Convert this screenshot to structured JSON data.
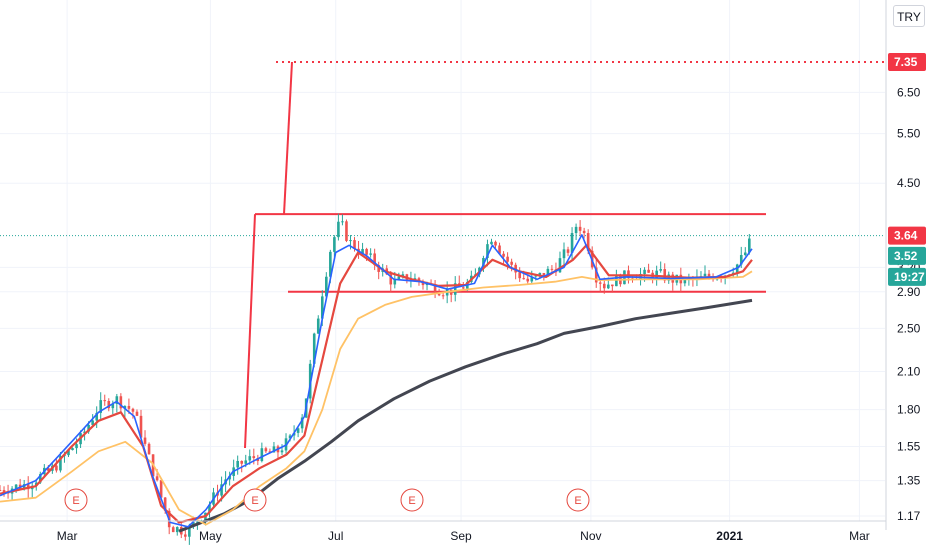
{
  "currency_button": "TRY",
  "price_tags": {
    "target": "7.35",
    "last": "3.64",
    "ma": "3.52",
    "countdown": "19:27"
  },
  "colors": {
    "up": "#26a69a",
    "down": "#ef5350",
    "ma_fast": "#2962ff",
    "ma_mid": "#e5483f",
    "ma_slow": "#ffc266",
    "ma_long": "#434651",
    "drawing": "#f23645",
    "target_tag": "#f23645",
    "ma_tag": "#26a69a",
    "grid": "#f0f3fa"
  },
  "chart_data": {
    "type": "candlestick",
    "y_scale": "log",
    "y_ticks": [
      "6.50",
      "5.50",
      "4.50",
      "3.20",
      "2.90",
      "2.50",
      "2.10",
      "1.80",
      "1.55",
      "1.35",
      "1.17"
    ],
    "x_ticks": [
      "Mar",
      "May",
      "Jul",
      "Sep",
      "Nov",
      "2021",
      "Mar"
    ],
    "earnings_markers": [
      "E",
      "E",
      "E",
      "E"
    ],
    "last_price": 3.64,
    "ma_value": 3.52,
    "target_price": 7.35,
    "channel": {
      "upper": 3.97,
      "lower": 2.9
    },
    "series": [
      {
        "key": "price",
        "points": [
          [
            0,
            1.3
          ],
          [
            6,
            1.33
          ],
          [
            12,
            1.42
          ],
          [
            18,
            1.6
          ],
          [
            22,
            1.82
          ],
          [
            26,
            1.88
          ],
          [
            30,
            1.78
          ],
          [
            34,
            1.42
          ],
          [
            38,
            1.12
          ],
          [
            42,
            1.1
          ],
          [
            46,
            1.2
          ],
          [
            50,
            1.35
          ],
          [
            54,
            1.45
          ],
          [
            58,
            1.5
          ],
          [
            62,
            1.52
          ],
          [
            65,
            1.6
          ],
          [
            68,
            1.8
          ],
          [
            70,
            2.35
          ],
          [
            72,
            2.9
          ],
          [
            74,
            3.5
          ],
          [
            76,
            3.85
          ],
          [
            78,
            3.55
          ],
          [
            80,
            3.45
          ],
          [
            83,
            3.3
          ],
          [
            86,
            3.12
          ],
          [
            88,
            3.0
          ],
          [
            91,
            3.08
          ],
          [
            94,
            3.02
          ],
          [
            97,
            2.95
          ],
          [
            100,
            2.9
          ],
          [
            103,
            2.95
          ],
          [
            106,
            3.05
          ],
          [
            108,
            3.4
          ],
          [
            110,
            3.65
          ],
          [
            112,
            3.4
          ],
          [
            115,
            3.15
          ],
          [
            118,
            3.02
          ],
          [
            121,
            3.1
          ],
          [
            124,
            3.2
          ],
          [
            127,
            3.45
          ],
          [
            129,
            3.85
          ],
          [
            131,
            3.6
          ],
          [
            133,
            3.1
          ],
          [
            135,
            2.98
          ],
          [
            138,
            3.05
          ],
          [
            141,
            3.12
          ],
          [
            144,
            3.1
          ],
          [
            147,
            3.12
          ],
          [
            150,
            3.05
          ],
          [
            153,
            3.02
          ],
          [
            156,
            3.05
          ],
          [
            159,
            3.1
          ],
          [
            162,
            3.12
          ],
          [
            165,
            3.25
          ],
          [
            167,
            3.45
          ],
          [
            168,
            3.64
          ]
        ]
      },
      {
        "key": "ma_fast",
        "points": [
          [
            0,
            1.27
          ],
          [
            8,
            1.35
          ],
          [
            16,
            1.58
          ],
          [
            22,
            1.78
          ],
          [
            26,
            1.86
          ],
          [
            30,
            1.75
          ],
          [
            34,
            1.38
          ],
          [
            38,
            1.14
          ],
          [
            42,
            1.12
          ],
          [
            46,
            1.2
          ],
          [
            52,
            1.4
          ],
          [
            58,
            1.48
          ],
          [
            64,
            1.56
          ],
          [
            68,
            1.75
          ],
          [
            72,
            2.6
          ],
          [
            75,
            3.4
          ],
          [
            78,
            3.5
          ],
          [
            82,
            3.35
          ],
          [
            88,
            3.05
          ],
          [
            94,
            3.02
          ],
          [
            100,
            2.93
          ],
          [
            106,
            3.0
          ],
          [
            110,
            3.5
          ],
          [
            114,
            3.2
          ],
          [
            120,
            3.05
          ],
          [
            126,
            3.2
          ],
          [
            130,
            3.65
          ],
          [
            134,
            3.05
          ],
          [
            140,
            3.08
          ],
          [
            150,
            3.06
          ],
          [
            160,
            3.08
          ],
          [
            165,
            3.2
          ],
          [
            168,
            3.45
          ]
        ]
      },
      {
        "key": "ma_mid",
        "points": [
          [
            0,
            1.28
          ],
          [
            8,
            1.32
          ],
          [
            16,
            1.55
          ],
          [
            22,
            1.72
          ],
          [
            27,
            1.78
          ],
          [
            32,
            1.55
          ],
          [
            36,
            1.22
          ],
          [
            40,
            1.14
          ],
          [
            46,
            1.17
          ],
          [
            52,
            1.32
          ],
          [
            58,
            1.42
          ],
          [
            64,
            1.5
          ],
          [
            68,
            1.62
          ],
          [
            72,
            2.2
          ],
          [
            76,
            3.0
          ],
          [
            80,
            3.4
          ],
          [
            86,
            3.15
          ],
          [
            92,
            3.05
          ],
          [
            98,
            2.97
          ],
          [
            104,
            2.98
          ],
          [
            110,
            3.3
          ],
          [
            116,
            3.15
          ],
          [
            122,
            3.08
          ],
          [
            128,
            3.3
          ],
          [
            131,
            3.5
          ],
          [
            136,
            3.1
          ],
          [
            144,
            3.1
          ],
          [
            154,
            3.07
          ],
          [
            162,
            3.08
          ],
          [
            166,
            3.15
          ],
          [
            168,
            3.3
          ]
        ]
      },
      {
        "key": "ma_slow",
        "points": [
          [
            0,
            1.24
          ],
          [
            8,
            1.26
          ],
          [
            16,
            1.4
          ],
          [
            22,
            1.52
          ],
          [
            28,
            1.58
          ],
          [
            34,
            1.45
          ],
          [
            40,
            1.2
          ],
          [
            46,
            1.13
          ],
          [
            52,
            1.2
          ],
          [
            58,
            1.32
          ],
          [
            64,
            1.42
          ],
          [
            68,
            1.52
          ],
          [
            72,
            1.8
          ],
          [
            76,
            2.3
          ],
          [
            80,
            2.6
          ],
          [
            86,
            2.75
          ],
          [
            92,
            2.84
          ],
          [
            100,
            2.9
          ],
          [
            108,
            2.95
          ],
          [
            116,
            2.98
          ],
          [
            124,
            3.02
          ],
          [
            130,
            3.08
          ],
          [
            134,
            3.04
          ],
          [
            144,
            3.05
          ],
          [
            156,
            3.05
          ],
          [
            166,
            3.08
          ],
          [
            168,
            3.15
          ]
        ]
      },
      {
        "key": "ma_long",
        "points": [
          [
            40,
            1.1
          ],
          [
            50,
            1.18
          ],
          [
            56,
            1.25
          ],
          [
            62,
            1.36
          ],
          [
            68,
            1.46
          ],
          [
            74,
            1.58
          ],
          [
            80,
            1.72
          ],
          [
            88,
            1.88
          ],
          [
            96,
            2.02
          ],
          [
            104,
            2.14
          ],
          [
            112,
            2.25
          ],
          [
            120,
            2.35
          ],
          [
            126,
            2.45
          ],
          [
            134,
            2.52
          ],
          [
            142,
            2.6
          ],
          [
            150,
            2.66
          ],
          [
            158,
            2.72
          ],
          [
            168,
            2.8
          ]
        ]
      }
    ]
  }
}
